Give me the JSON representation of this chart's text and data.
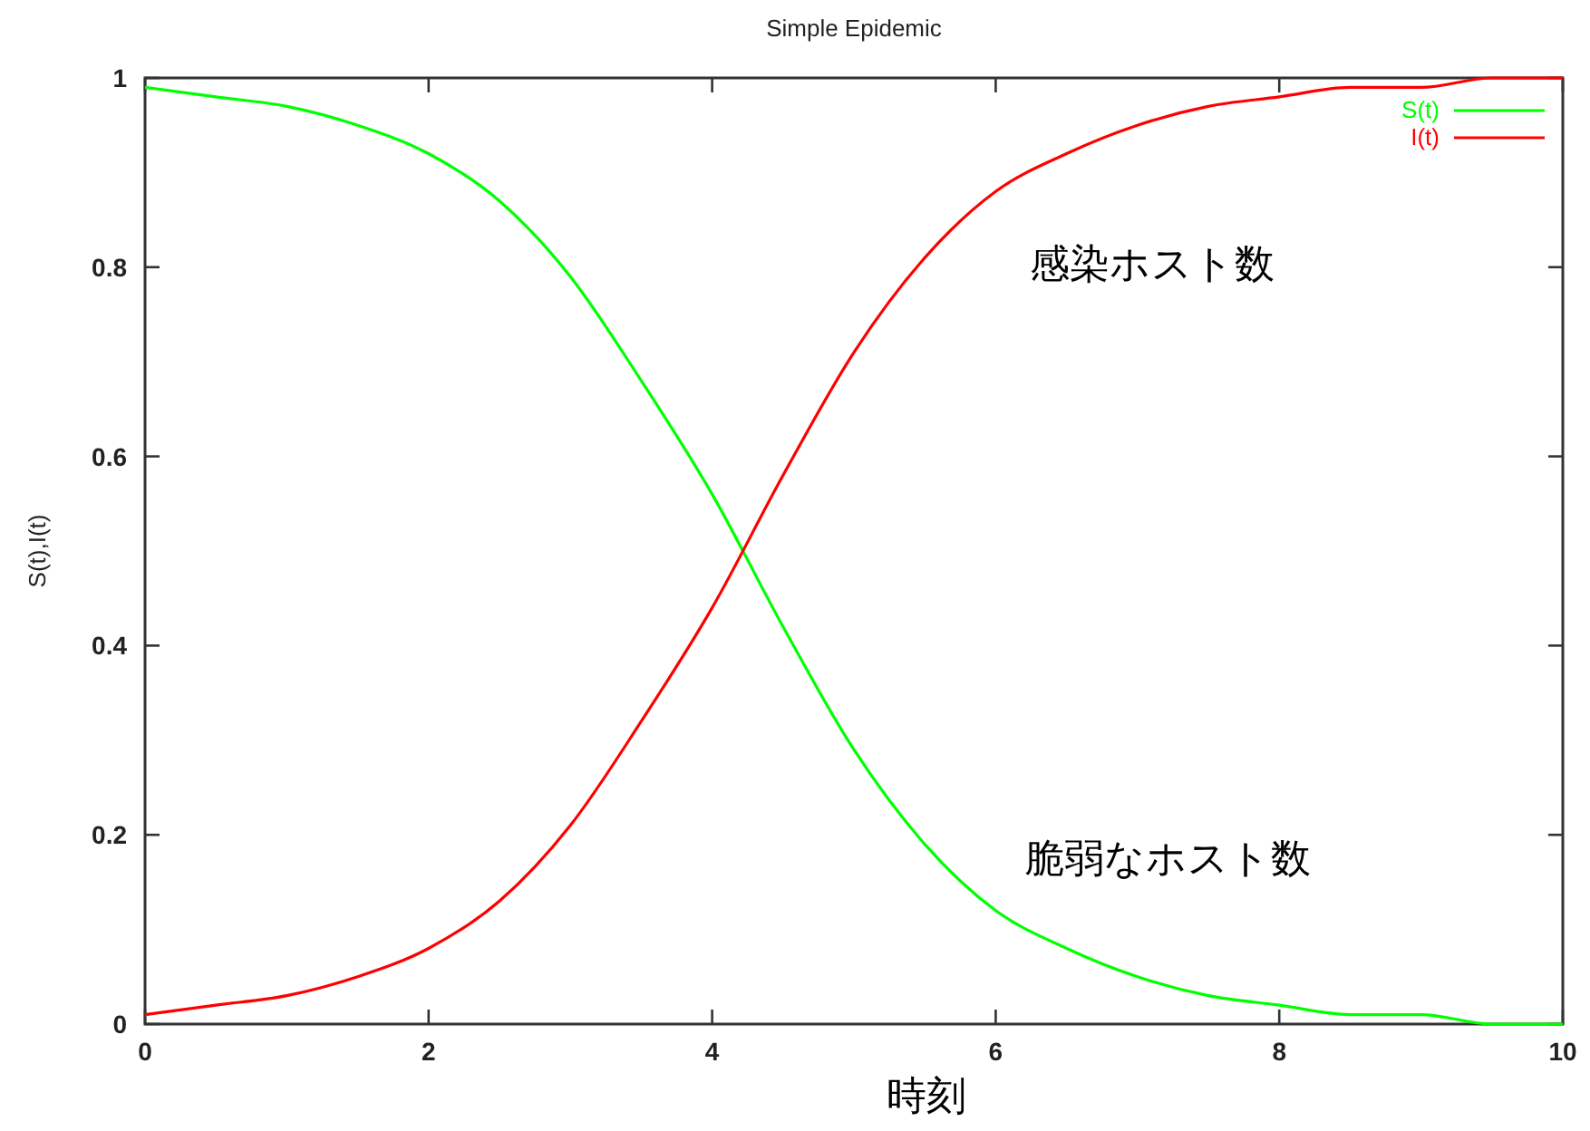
{
  "chart_data": {
    "type": "line",
    "title": "Simple Epidemic",
    "xlabel": "時刻",
    "ylabel": "S(t),I(t)",
    "x": [
      0,
      0.5,
      1,
      1.5,
      2,
      2.5,
      3,
      3.5,
      4,
      4.5,
      5,
      5.5,
      6,
      6.5,
      7,
      7.5,
      8,
      8.5,
      9,
      9.5,
      10
    ],
    "series": [
      {
        "name": "S(t)",
        "color": "#00ff00",
        "values": [
          0.99,
          0.98,
          0.97,
          0.95,
          0.92,
          0.87,
          0.79,
          0.68,
          0.56,
          0.42,
          0.29,
          0.19,
          0.12,
          0.08,
          0.05,
          0.03,
          0.02,
          0.01,
          0.01,
          0.0,
          0.0
        ]
      },
      {
        "name": "I(t)",
        "color": "#ff0000",
        "values": [
          0.01,
          0.02,
          0.03,
          0.05,
          0.08,
          0.13,
          0.21,
          0.32,
          0.44,
          0.58,
          0.71,
          0.81,
          0.88,
          0.92,
          0.95,
          0.97,
          0.98,
          0.99,
          0.99,
          1.0,
          1.0
        ]
      }
    ],
    "xlim": [
      0,
      10
    ],
    "ylim": [
      0,
      1
    ],
    "xticks": [
      0,
      2,
      4,
      6,
      8,
      10
    ],
    "yticks": [
      0,
      0.2,
      0.4,
      0.6,
      0.8,
      1
    ],
    "grid": false,
    "legend": "top right",
    "marker": "none",
    "line_style": "solid",
    "annotations": [
      "感染ホスト数",
      "脆弱なホスト数"
    ]
  }
}
